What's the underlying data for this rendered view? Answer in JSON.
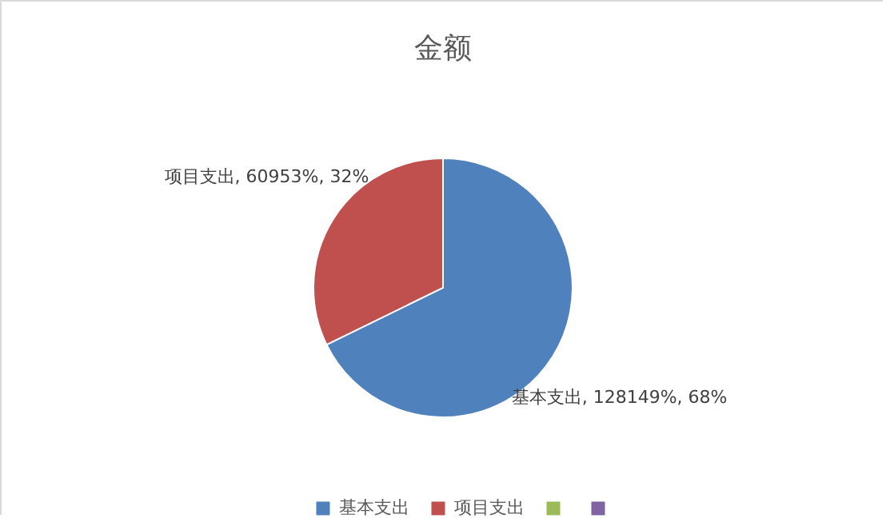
{
  "chart_data": {
    "type": "pie",
    "title": "金额",
    "categories": [
      "基本支出",
      "项目支出",
      null,
      null
    ],
    "values": [
      128149,
      60953,
      0,
      0
    ],
    "colors": [
      "#4f81bd",
      "#c0504d",
      "#9bbb59",
      "#8064a2"
    ],
    "value_labels": [
      "基本支出, 128149%, 68%",
      "项目支出, 60953%, 32%",
      null,
      null
    ],
    "legend": "bottom"
  }
}
